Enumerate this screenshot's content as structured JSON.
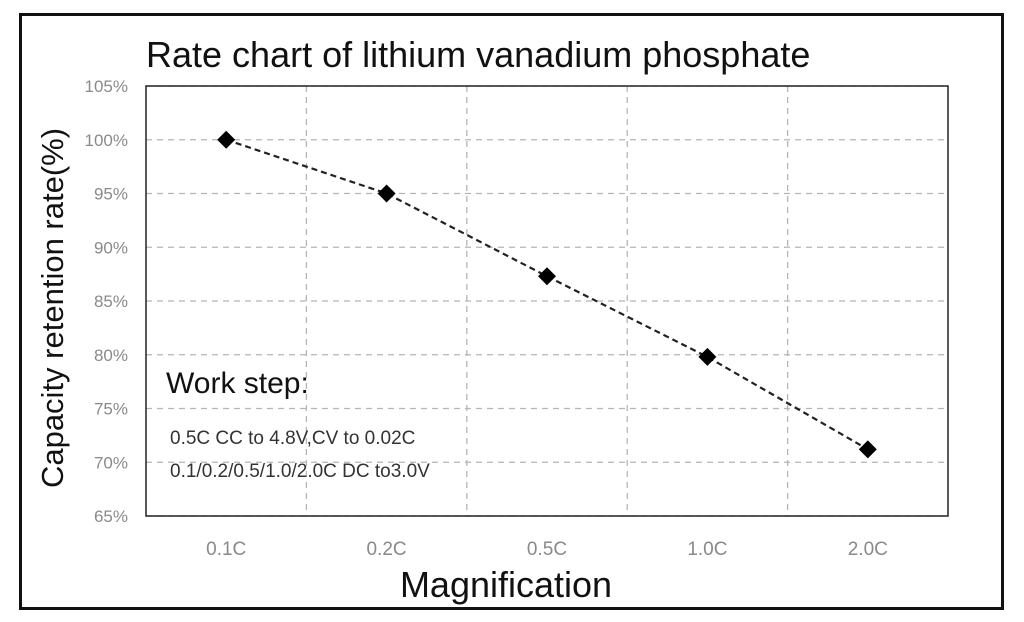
{
  "chart_data": {
    "type": "line",
    "title": "Rate chart of lithium vanadium phosphate",
    "xlabel": "Magnification",
    "ylabel": "Capacity retention rate(%)",
    "categories": [
      "0.1C",
      "0.2C",
      "0.5C",
      "1.0C",
      "2.0C"
    ],
    "series": [
      {
        "values": [
          100,
          95,
          87.3,
          79.8,
          71.2
        ]
      }
    ],
    "ylim": [
      65,
      105
    ],
    "yticks": [
      65,
      70,
      75,
      80,
      85,
      90,
      95,
      100,
      105
    ],
    "ytick_labels": [
      "65%",
      "70%",
      "75%",
      "80%",
      "85%",
      "90%",
      "95%",
      "100%",
      "105%"
    ],
    "grid": true,
    "line_style": "dashed",
    "marker": "diamond",
    "annotation": {
      "heading": "Work step:",
      "lines": [
        "0.5C CC to 4.8V,CV to 0.02C",
        "0.1/0.2/0.5/1.0/2.0C DC to3.0V"
      ]
    },
    "colors": {
      "series": "#222222",
      "grid": "#b5b5b5",
      "tick_text": "#8a8a8a",
      "axis": "#222222"
    }
  }
}
